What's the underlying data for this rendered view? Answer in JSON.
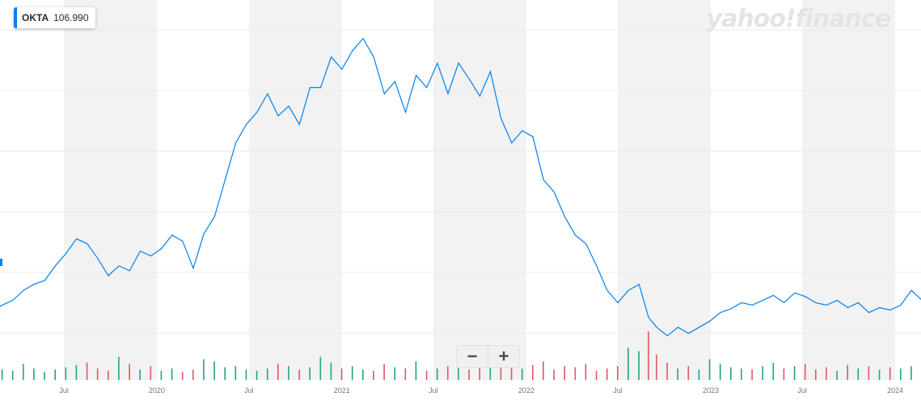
{
  "ticker": {
    "symbol": "OKTA",
    "price": "106.990",
    "color": "#0081f2"
  },
  "watermark": "yahoo!finance",
  "zoom": {
    "minus": "−",
    "plus": "+"
  },
  "colors": {
    "line": "#0081f2",
    "volume_up": "#21a67a",
    "volume_down": "#e3565d",
    "band": "#f2f2f2",
    "grid": "#e9e9e9"
  },
  "chart_data": {
    "type": "line",
    "title": "",
    "xlabel": "",
    "ylabel": "",
    "grid": true,
    "x_tick_labels": [
      "Jul",
      "2020",
      "Jul",
      "2021",
      "Jul",
      "2022",
      "Jul",
      "2023",
      "Jul",
      "2024"
    ],
    "series": [
      {
        "name": "OKTA",
        "x": [
          "2019-02-08",
          "2019-03-01",
          "2019-03-22",
          "2019-04-12",
          "2019-05-03",
          "2019-05-24",
          "2019-06-14",
          "2019-07-05",
          "2019-07-26",
          "2019-08-16",
          "2019-09-06",
          "2019-09-27",
          "2019-10-18",
          "2019-11-08",
          "2019-11-29",
          "2019-12-20",
          "2020-01-10",
          "2020-01-31",
          "2020-02-21",
          "2020-03-13",
          "2020-04-03",
          "2020-04-24",
          "2020-05-15",
          "2020-06-05",
          "2020-06-26",
          "2020-07-17",
          "2020-08-07",
          "2020-08-28",
          "2020-09-18",
          "2020-10-09",
          "2020-10-30",
          "2020-11-20",
          "2020-12-11",
          "2021-01-01",
          "2021-01-22",
          "2021-02-12",
          "2021-03-05",
          "2021-03-26",
          "2021-04-16",
          "2021-05-07",
          "2021-05-28",
          "2021-06-18",
          "2021-07-09",
          "2021-07-30",
          "2021-08-20",
          "2021-09-10",
          "2021-10-01",
          "2021-10-22",
          "2021-11-12",
          "2021-12-03",
          "2021-12-24",
          "2022-01-14",
          "2022-02-04",
          "2022-02-25",
          "2022-03-18",
          "2022-04-08",
          "2022-04-29",
          "2022-05-20",
          "2022-06-10",
          "2022-07-01",
          "2022-07-22",
          "2022-08-12",
          "2022-08-31",
          "2022-09-16",
          "2022-10-07",
          "2022-10-28",
          "2022-11-18",
          "2022-12-09",
          "2022-12-30",
          "2023-01-20",
          "2023-02-10",
          "2023-03-03",
          "2023-03-24",
          "2023-04-14",
          "2023-05-05",
          "2023-05-26",
          "2023-06-16",
          "2023-07-07",
          "2023-07-28",
          "2023-08-18",
          "2023-09-08",
          "2023-09-29",
          "2023-10-20",
          "2023-11-10",
          "2023-12-01",
          "2023-12-22",
          "2024-01-12",
          "2024-02-02",
          "2024-02-23",
          "2024-03-08",
          "2024-03-22"
        ],
        "values": [
          63,
          68,
          72,
          80,
          85,
          88,
          100,
          110,
          122,
          118,
          106,
          92,
          100,
          96,
          112,
          108,
          114,
          125,
          120,
          98,
          126,
          140,
          170,
          200,
          215,
          225,
          240,
          222,
          230,
          215,
          245,
          245,
          270,
          260,
          275,
          285,
          270,
          240,
          250,
          225,
          255,
          245,
          265,
          240,
          265,
          252,
          238,
          258,
          220,
          200,
          210,
          205,
          170,
          160,
          140,
          125,
          118,
          100,
          80,
          70,
          80,
          85,
          58,
          50,
          43,
          50,
          45,
          50,
          55,
          62,
          65,
          70,
          68,
          72,
          76,
          70,
          78,
          75,
          70,
          68,
          72,
          66,
          70,
          62,
          66,
          64,
          68,
          80,
          72,
          76,
          98
        ]
      },
      {
        "name": "Volume",
        "values": [
          12,
          9,
          8,
          14,
          10,
          7,
          9,
          11,
          13,
          15,
          10,
          8,
          20,
          14,
          9,
          12,
          8,
          10,
          7,
          9,
          18,
          16,
          11,
          12,
          9,
          8,
          10,
          14,
          12,
          9,
          11,
          20,
          15,
          10,
          12,
          9,
          8,
          14,
          11,
          10,
          16,
          8,
          10,
          12,
          14,
          9,
          11,
          15,
          18,
          12,
          10,
          13,
          16,
          9,
          12,
          11,
          14,
          8,
          10,
          12,
          28,
          25,
          42,
          22,
          15,
          10,
          12,
          9,
          18,
          14,
          11,
          10,
          9,
          12,
          15,
          10,
          12,
          14,
          9,
          11,
          8,
          13,
          10,
          12,
          9,
          11,
          10,
          12,
          14,
          16,
          22
        ]
      }
    ]
  }
}
